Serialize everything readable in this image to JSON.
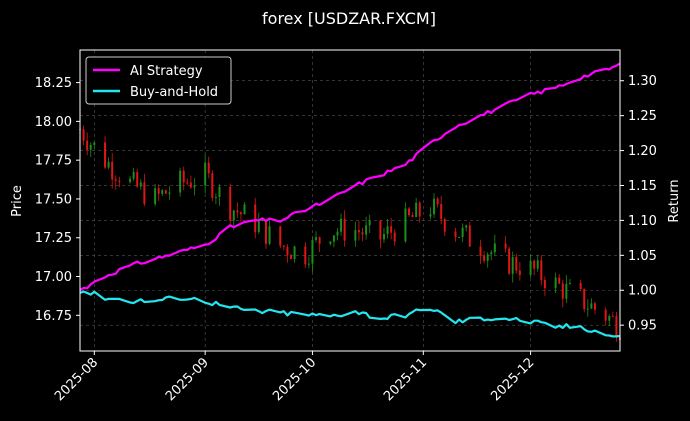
{
  "chart_data": {
    "type": "line",
    "title": "forex [USDZAR.FXCM]",
    "xlabel": "",
    "ylabel_left": "Price",
    "ylabel_right": "Return",
    "x_range": [
      "2025-07-28",
      "2025-12-26"
    ],
    "ylim_left": [
      16.52,
      18.46
    ],
    "ylim_right": [
      0.913,
      1.344
    ],
    "x_ticks": [
      "2025-08-01",
      "2025-09-01",
      "2025-10-01",
      "2025-11-01",
      "2025-12-01"
    ],
    "x_tick_labels": [
      "2025-08",
      "2025-09",
      "2025-10",
      "2025-11",
      "2025-12"
    ],
    "y_ticks_left": [
      16.75,
      17.0,
      17.25,
      17.5,
      17.75,
      18.0,
      18.25
    ],
    "y_tick_labels_left": [
      "16.75",
      "17.00",
      "17.25",
      "17.50",
      "17.75",
      "18.00",
      "18.25"
    ],
    "y_ticks_right": [
      0.95,
      1.0,
      1.05,
      1.1,
      1.15,
      1.2,
      1.25,
      1.3
    ],
    "y_tick_labels_right": [
      "0.95",
      "1.00",
      "1.05",
      "1.10",
      "1.15",
      "1.20",
      "1.25",
      "1.30"
    ],
    "grid": true,
    "legend_position": "top-left",
    "colors": {
      "background": "#000000",
      "ai": "#ff00ff",
      "bh": "#22e6f0",
      "up": "#1a8f1a",
      "down": "#e01515",
      "grid": "#555555"
    },
    "series": [
      {
        "name": "AI Strategy",
        "axis": "right",
        "x": [
          "2025-07-28",
          "2025-08-04",
          "2025-08-11",
          "2025-08-18",
          "2025-08-25",
          "2025-09-01",
          "2025-09-08",
          "2025-09-15",
          "2025-09-22",
          "2025-09-29",
          "2025-10-06",
          "2025-10-13",
          "2025-10-20",
          "2025-10-27",
          "2025-11-03",
          "2025-11-10",
          "2025-11-17",
          "2025-11-24",
          "2025-12-01",
          "2025-12-08",
          "2025-12-15",
          "2025-12-22",
          "2025-12-26"
        ],
        "y": [
          1.0,
          1.02,
          1.035,
          1.045,
          1.055,
          1.065,
          1.09,
          1.1,
          1.1,
          1.115,
          1.13,
          1.15,
          1.165,
          1.18,
          1.21,
          1.235,
          1.25,
          1.265,
          1.28,
          1.29,
          1.305,
          1.315,
          1.323
        ]
      },
      {
        "name": "Buy-and-Hold",
        "axis": "right",
        "x": [
          "2025-07-28",
          "2025-08-04",
          "2025-08-11",
          "2025-08-18",
          "2025-08-25",
          "2025-09-01",
          "2025-09-08",
          "2025-09-15",
          "2025-09-22",
          "2025-09-29",
          "2025-10-06",
          "2025-10-13",
          "2025-10-20",
          "2025-10-27",
          "2025-11-03",
          "2025-11-10",
          "2025-11-17",
          "2025-11-24",
          "2025-12-01",
          "2025-12-08",
          "2025-12-15",
          "2025-12-22",
          "2025-12-26"
        ],
        "y": [
          1.0,
          0.99,
          0.985,
          0.985,
          0.99,
          0.985,
          0.975,
          0.97,
          0.968,
          0.965,
          0.963,
          0.97,
          0.96,
          0.965,
          0.975,
          0.955,
          0.96,
          0.96,
          0.955,
          0.948,
          0.948,
          0.937,
          0.932
        ]
      },
      {
        "name": "",
        "type": "candlestick",
        "axis": "left",
        "x": [
          "2025-07-28",
          "2025-08-04",
          "2025-08-11",
          "2025-08-18",
          "2025-08-25",
          "2025-09-01",
          "2025-09-08",
          "2025-09-15",
          "2025-09-22",
          "2025-09-29",
          "2025-10-06",
          "2025-10-13",
          "2025-10-20",
          "2025-10-27",
          "2025-11-03",
          "2025-11-10",
          "2025-11-17",
          "2025-11-24",
          "2025-12-01",
          "2025-12-08",
          "2025-12-15",
          "2025-12-22",
          "2025-12-26"
        ],
        "close": [
          17.95,
          17.75,
          17.6,
          17.5,
          17.6,
          17.65,
          17.45,
          17.35,
          17.2,
          17.15,
          17.3,
          17.3,
          17.25,
          17.35,
          17.45,
          17.3,
          17.2,
          17.1,
          17.05,
          16.95,
          16.85,
          16.75,
          16.68
        ]
      }
    ]
  }
}
